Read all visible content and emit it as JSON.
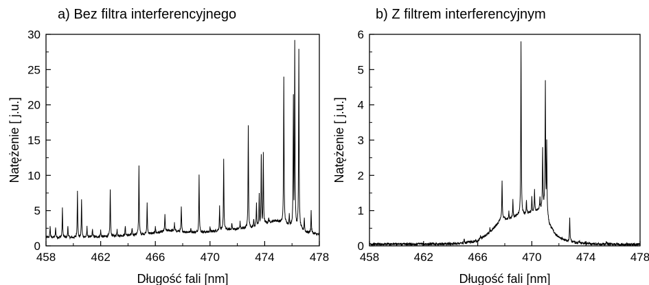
{
  "chart_data": [
    {
      "type": "line",
      "title": "a) Bez filtra interferencyjnego",
      "xlabel": "Długość fali  [nm]",
      "ylabel": "Natężenie  [ j.u.]",
      "xlim": [
        458,
        478
      ],
      "ylim": [
        0,
        30
      ],
      "xticks": [
        "458",
        "462",
        "466",
        "470",
        "474",
        "478"
      ],
      "yticks": [
        "0",
        "5",
        "10",
        "15",
        "20",
        "25",
        "30"
      ],
      "line_color": "#000000",
      "baseline": [
        [
          458,
          1.2
        ],
        [
          460,
          1.2
        ],
        [
          462,
          1.3
        ],
        [
          464,
          1.5
        ],
        [
          466,
          1.8
        ],
        [
          467,
          2.2
        ],
        [
          468,
          2.0
        ],
        [
          469,
          1.9
        ],
        [
          470,
          2.0
        ],
        [
          471,
          2.3
        ],
        [
          472,
          2.4
        ],
        [
          473,
          2.6
        ],
        [
          474,
          3.2
        ],
        [
          474.8,
          3.6
        ],
        [
          475.5,
          3.2
        ],
        [
          476.3,
          3.0
        ],
        [
          477,
          2.0
        ],
        [
          478,
          1.6
        ]
      ],
      "peaks": [
        [
          458.3,
          2.8
        ],
        [
          458.7,
          2.6
        ],
        [
          459.2,
          5.3
        ],
        [
          459.6,
          2.8
        ],
        [
          460.3,
          7.8
        ],
        [
          460.6,
          6.6
        ],
        [
          461.0,
          2.7
        ],
        [
          461.4,
          2.4
        ],
        [
          462.0,
          2.2
        ],
        [
          462.7,
          8.0
        ],
        [
          463.2,
          2.4
        ],
        [
          463.8,
          2.8
        ],
        [
          464.3,
          2.5
        ],
        [
          464.8,
          11.4
        ],
        [
          465.4,
          6.0
        ],
        [
          466.0,
          2.8
        ],
        [
          466.7,
          4.5
        ],
        [
          467.4,
          3.2
        ],
        [
          467.9,
          5.5
        ],
        [
          468.6,
          2.5
        ],
        [
          469.2,
          10.1
        ],
        [
          470.0,
          2.6
        ],
        [
          470.7,
          5.6
        ],
        [
          471.0,
          12.3
        ],
        [
          471.6,
          3.2
        ],
        [
          472.2,
          3.4
        ],
        [
          472.8,
          17.1
        ],
        [
          473.2,
          3.8
        ],
        [
          473.4,
          6.0
        ],
        [
          473.6,
          7.5
        ],
        [
          473.75,
          13.0
        ],
        [
          473.9,
          13.2
        ],
        [
          474.3,
          4.0
        ],
        [
          475.4,
          24.0
        ],
        [
          475.8,
          4.5
        ],
        [
          476.1,
          21.5
        ],
        [
          476.2,
          29.2
        ],
        [
          476.5,
          27.8
        ],
        [
          476.9,
          4.0
        ],
        [
          477.4,
          5.0
        ]
      ]
    },
    {
      "type": "line",
      "title": "b) Z filtrem interferencyjnym",
      "xlabel": "Długość fali  [nm]",
      "ylabel": "Natężenie  [ j.u.]",
      "xlim": [
        458,
        478
      ],
      "ylim": [
        0,
        6
      ],
      "xticks": [
        "458",
        "462",
        "466",
        "470",
        "474",
        "478"
      ],
      "yticks": [
        "0",
        "1",
        "2",
        "3",
        "4",
        "5",
        "6"
      ],
      "line_color": "#000000",
      "baseline": [
        [
          458,
          0.05
        ],
        [
          462,
          0.05
        ],
        [
          464,
          0.06
        ],
        [
          465,
          0.08
        ],
        [
          466,
          0.15
        ],
        [
          466.8,
          0.35
        ],
        [
          467.3,
          0.55
        ],
        [
          467.8,
          0.8
        ],
        [
          468.3,
          0.75
        ],
        [
          468.8,
          0.85
        ],
        [
          469.3,
          0.9
        ],
        [
          469.8,
          0.95
        ],
        [
          470.3,
          1.0
        ],
        [
          470.7,
          1.1
        ],
        [
          471.0,
          1.3
        ],
        [
          471.3,
          0.6
        ],
        [
          471.8,
          0.3
        ],
        [
          472.5,
          0.15
        ],
        [
          473.5,
          0.08
        ],
        [
          475,
          0.05
        ],
        [
          478,
          0.04
        ]
      ],
      "peaks": [
        [
          465.0,
          0.18
        ],
        [
          466.2,
          0.3
        ],
        [
          466.9,
          0.5
        ],
        [
          467.8,
          1.85
        ],
        [
          468.3,
          1.0
        ],
        [
          468.6,
          1.3
        ],
        [
          469.2,
          5.8
        ],
        [
          469.6,
          1.3
        ],
        [
          470.0,
          1.4
        ],
        [
          470.2,
          1.6
        ],
        [
          470.6,
          1.4
        ],
        [
          470.8,
          2.8
        ],
        [
          471.0,
          4.7
        ],
        [
          471.1,
          3.0
        ],
        [
          472.8,
          0.8
        ],
        [
          473.5,
          0.15
        ],
        [
          475.5,
          0.12
        ],
        [
          476.3,
          0.08
        ]
      ]
    }
  ]
}
